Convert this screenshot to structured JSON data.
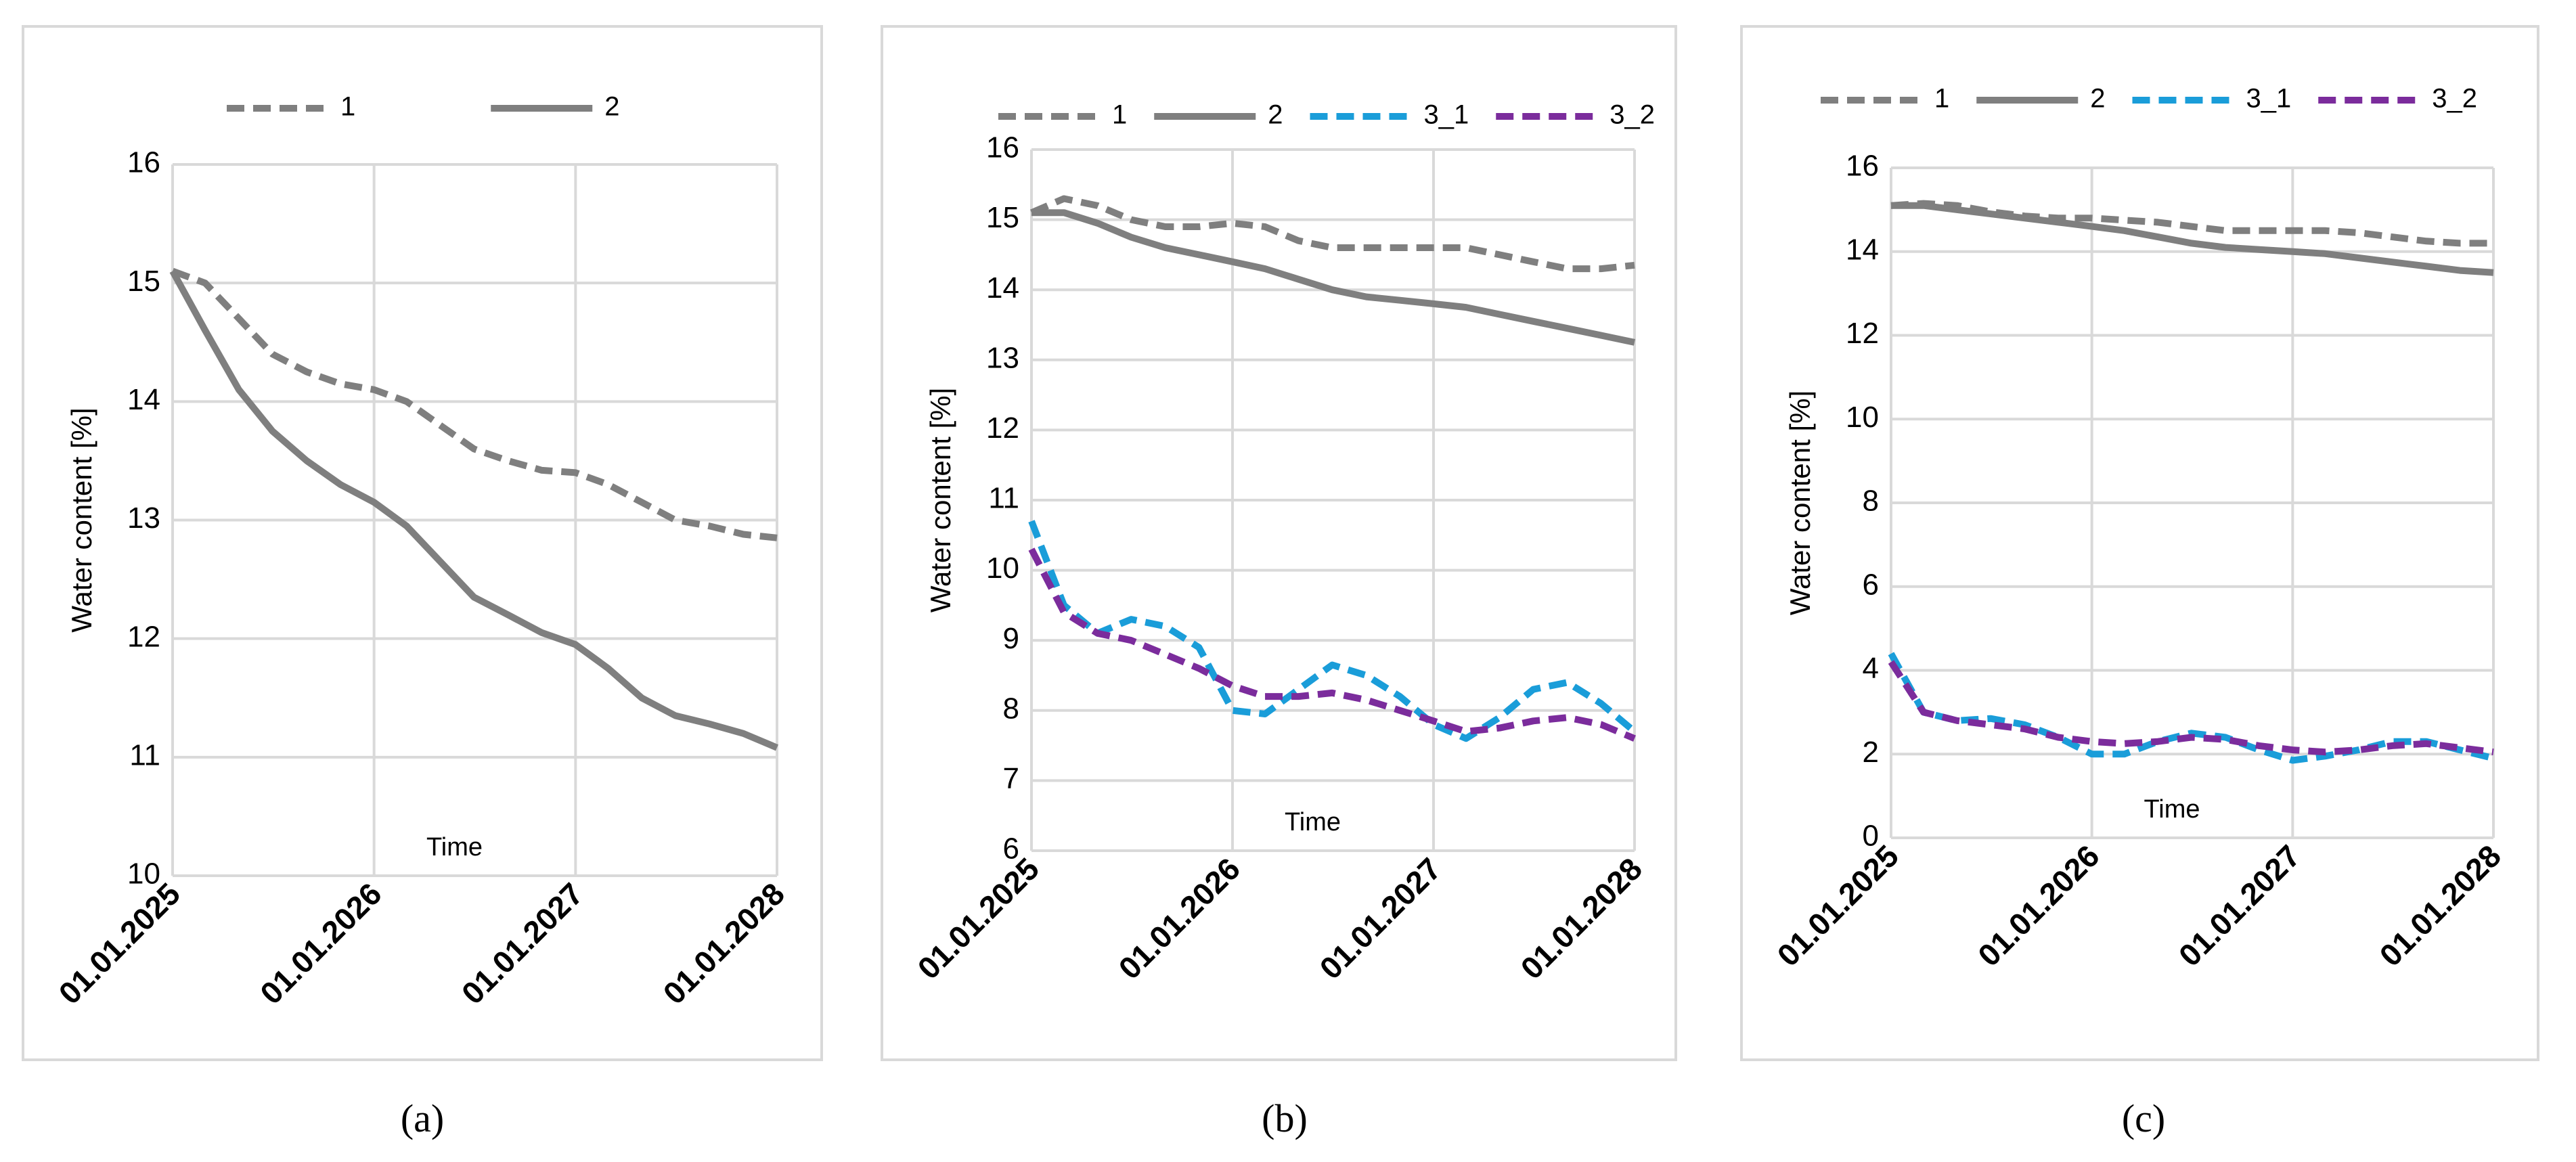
{
  "chart_data": [
    {
      "type": "line",
      "panel_label": "(a)",
      "y_label": "Water content [%]",
      "x_label": "Time",
      "x": [
        "01.01.2025",
        "01.03.2025",
        "01.05.2025",
        "01.07.2025",
        "01.09.2025",
        "01.11.2025",
        "01.01.2026",
        "01.03.2026",
        "01.05.2026",
        "01.07.2026",
        "01.09.2026",
        "01.11.2026",
        "01.01.2027",
        "01.03.2027",
        "01.05.2027",
        "01.07.2027",
        "01.09.2027",
        "01.11.2027",
        "01.01.2028"
      ],
      "xlim": [
        "01.01.2025",
        "01.01.2028"
      ],
      "xticks": [
        "01.01.2025",
        "01.01.2026",
        "01.01.2027",
        "01.01.2028"
      ],
      "ylim": [
        10,
        16
      ],
      "yticks": [
        10,
        11,
        12,
        13,
        14,
        15,
        16
      ],
      "grid": true,
      "series": [
        {
          "name": "1",
          "color": "#7f7f7f",
          "dashed": true,
          "values": [
            15.1,
            15.0,
            14.7,
            14.4,
            14.25,
            14.15,
            14.1,
            14.0,
            13.8,
            13.6,
            13.5,
            13.42,
            13.4,
            13.3,
            13.15,
            13.0,
            12.95,
            12.88,
            12.85
          ]
        },
        {
          "name": "2",
          "color": "#7f7f7f",
          "dashed": false,
          "values": [
            15.1,
            14.6,
            14.1,
            13.75,
            13.5,
            13.3,
            13.15,
            12.95,
            12.65,
            12.35,
            12.2,
            12.05,
            11.95,
            11.75,
            11.5,
            11.35,
            11.28,
            11.2,
            11.08
          ]
        }
      ]
    },
    {
      "type": "line",
      "panel_label": "(b)",
      "y_label": "Water content [%]",
      "x_label": "Time",
      "x": [
        "01.01.2025",
        "01.03.2025",
        "01.05.2025",
        "01.07.2025",
        "01.09.2025",
        "01.11.2025",
        "01.01.2026",
        "01.03.2026",
        "01.05.2026",
        "01.07.2026",
        "01.09.2026",
        "01.11.2026",
        "01.01.2027",
        "01.03.2027",
        "01.05.2027",
        "01.07.2027",
        "01.09.2027",
        "01.11.2027",
        "01.01.2028"
      ],
      "xlim": [
        "01.01.2025",
        "01.01.2028"
      ],
      "xticks": [
        "01.01.2025",
        "01.01.2026",
        "01.01.2027",
        "01.01.2028"
      ],
      "ylim": [
        6,
        16
      ],
      "yticks": [
        6,
        7,
        8,
        9,
        10,
        11,
        12,
        13,
        14,
        15,
        16
      ],
      "grid": true,
      "series": [
        {
          "name": "1",
          "color": "#7f7f7f",
          "dashed": true,
          "values": [
            15.1,
            15.3,
            15.2,
            15.0,
            14.9,
            14.9,
            14.95,
            14.9,
            14.7,
            14.6,
            14.6,
            14.6,
            14.6,
            14.6,
            14.5,
            14.4,
            14.3,
            14.3,
            14.35
          ]
        },
        {
          "name": "2",
          "color": "#7f7f7f",
          "dashed": false,
          "values": [
            15.1,
            15.1,
            14.95,
            14.75,
            14.6,
            14.5,
            14.4,
            14.3,
            14.15,
            14.0,
            13.9,
            13.85,
            13.8,
            13.75,
            13.65,
            13.55,
            13.45,
            13.35,
            13.25
          ]
        },
        {
          "name": "3_1",
          "color": "#1a9dd9",
          "dashed": true,
          "values": [
            10.7,
            9.5,
            9.1,
            9.3,
            9.2,
            8.9,
            8.0,
            7.95,
            8.3,
            8.65,
            8.5,
            8.2,
            7.8,
            7.6,
            7.9,
            8.3,
            8.4,
            8.1,
            7.7
          ]
        },
        {
          "name": "3_2",
          "color": "#7b2c9c",
          "dashed": true,
          "values": [
            10.3,
            9.4,
            9.1,
            9.0,
            8.8,
            8.6,
            8.35,
            8.2,
            8.2,
            8.25,
            8.15,
            8.0,
            7.85,
            7.7,
            7.75,
            7.85,
            7.9,
            7.8,
            7.6
          ]
        }
      ]
    },
    {
      "type": "line",
      "panel_label": "(c)",
      "y_label": "Water content [%]",
      "x_label": "Time",
      "x": [
        "01.01.2025",
        "01.03.2025",
        "01.05.2025",
        "01.07.2025",
        "01.09.2025",
        "01.11.2025",
        "01.01.2026",
        "01.03.2026",
        "01.05.2026",
        "01.07.2026",
        "01.09.2026",
        "01.11.2026",
        "01.01.2027",
        "01.03.2027",
        "01.05.2027",
        "01.07.2027",
        "01.09.2027",
        "01.11.2027",
        "01.01.2028"
      ],
      "xlim": [
        "01.01.2025",
        "01.01.2028"
      ],
      "xticks": [
        "01.01.2025",
        "01.01.2026",
        "01.01.2027",
        "01.01.2028"
      ],
      "ylim": [
        0,
        16
      ],
      "yticks": [
        0,
        2,
        4,
        6,
        8,
        10,
        12,
        14,
        16
      ],
      "grid": true,
      "series": [
        {
          "name": "1",
          "color": "#7f7f7f",
          "dashed": true,
          "values": [
            15.1,
            15.15,
            15.1,
            14.95,
            14.85,
            14.8,
            14.8,
            14.75,
            14.7,
            14.6,
            14.5,
            14.5,
            14.5,
            14.5,
            14.45,
            14.35,
            14.25,
            14.2,
            14.2
          ]
        },
        {
          "name": "2",
          "color": "#7f7f7f",
          "dashed": false,
          "values": [
            15.1,
            15.1,
            15.0,
            14.9,
            14.8,
            14.7,
            14.6,
            14.5,
            14.35,
            14.2,
            14.1,
            14.05,
            14.0,
            13.95,
            13.85,
            13.75,
            13.65,
            13.55,
            13.5
          ]
        },
        {
          "name": "3_1",
          "color": "#1a9dd9",
          "dashed": true,
          "values": [
            4.4,
            3.0,
            2.8,
            2.85,
            2.7,
            2.4,
            2.0,
            2.0,
            2.3,
            2.5,
            2.4,
            2.1,
            1.85,
            1.95,
            2.1,
            2.3,
            2.3,
            2.1,
            1.9
          ]
        },
        {
          "name": "3_2",
          "color": "#7b2c9c",
          "dashed": true,
          "values": [
            4.2,
            3.0,
            2.8,
            2.7,
            2.6,
            2.4,
            2.3,
            2.25,
            2.3,
            2.4,
            2.35,
            2.2,
            2.1,
            2.05,
            2.1,
            2.2,
            2.25,
            2.15,
            2.05
          ]
        }
      ]
    }
  ]
}
